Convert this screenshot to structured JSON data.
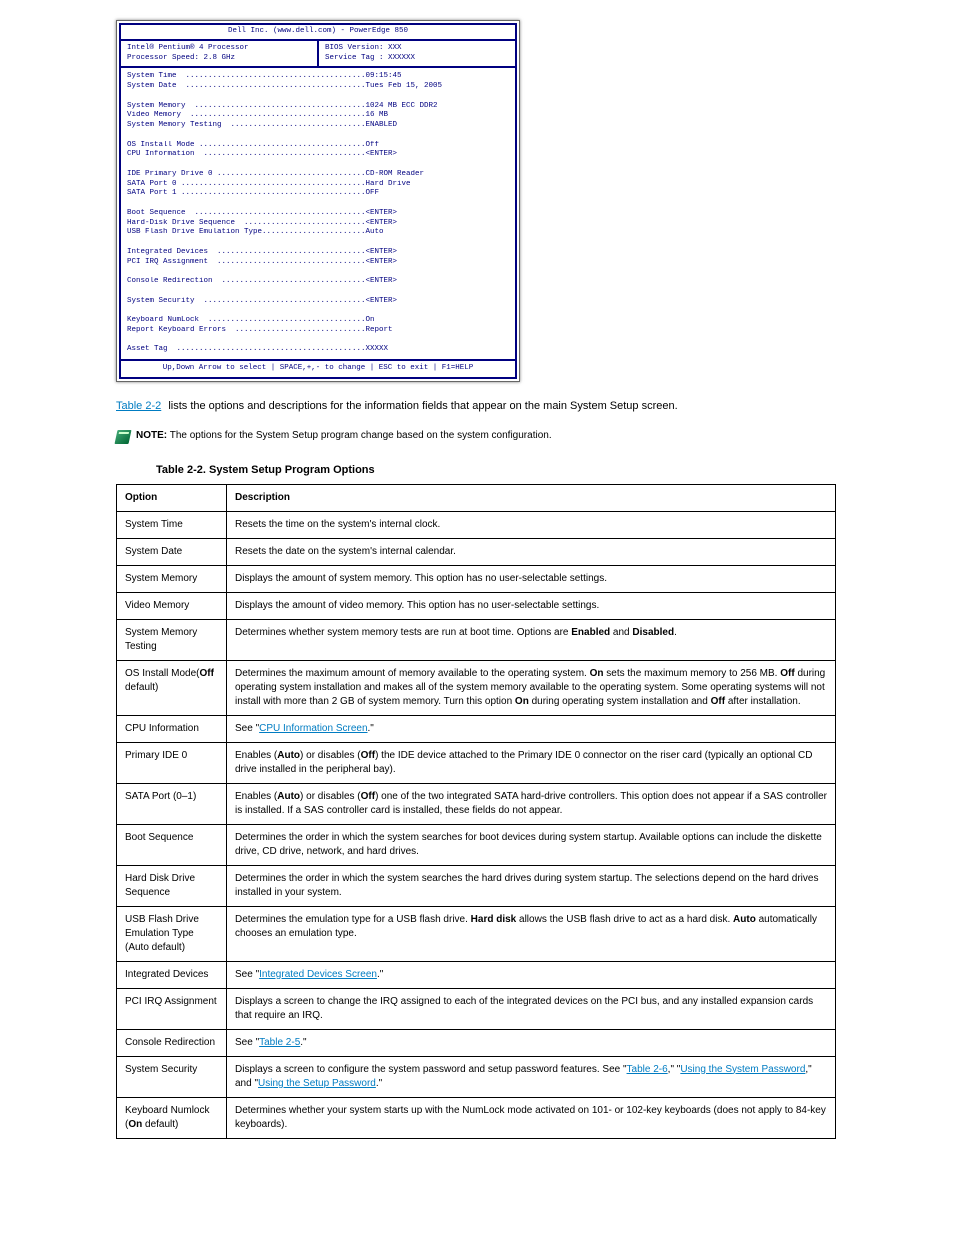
{
  "bios": {
    "header": "Dell Inc. (www.dell.com) - PowerEdge 850",
    "proc1": "Intel® Pentium® 4 Processor",
    "proc2": "Processor Speed: 2.8 GHz",
    "biosver": "BIOS Version: XXX",
    "svctag": "Service Tag : XXXXXX",
    "lines": [
      "System Time  ........................................09:15:45",
      "System Date  ........................................Tues Feb 15, 2005",
      "",
      "System Memory  ......................................1024 MB ECC DDR2",
      "Video Memory  .......................................16 MB",
      "System Memory Testing  ..............................ENABLED",
      "",
      "OS Install Mode .....................................Off",
      "CPU Information  ....................................<ENTER>",
      "",
      "IDE Primary Drive 0 .................................CD-ROM Reader",
      "SATA Port 0 .........................................Hard Drive",
      "SATA Port 1 .........................................OFF",
      "",
      "Boot Sequence  ......................................<ENTER>",
      "Hard-Disk Drive Sequence  ...........................<ENTER>",
      "USB Flash Drive Emulation Type.......................Auto",
      "",
      "Integrated Devices  .................................<ENTER>",
      "PCI IRQ Assignment  .................................<ENTER>",
      "",
      "Console Redirection  ................................<ENTER>",
      "",
      "System Security  ....................................<ENTER>",
      "",
      "Keyboard NumLock  ...................................On",
      "Report Keyboard Errors  .............................Report",
      "",
      "Asset Tag  ..........................................XXXXX"
    ],
    "footer": "Up,Down Arrow to select  |  SPACE,+,- to change  |  ESC to exit  |  F1=HELP"
  },
  "afterBios": {
    "linkLabel": "Table 2-2",
    "afterLink": " lists the options and descriptions for the information fields that appear on the main System Setup screen."
  },
  "note": {
    "bold": "NOTE:",
    "text": " The options for the System Setup program change based on the system configuration."
  },
  "tableCaption": "Table 2-2. System Setup Program Options",
  "tableCaptionNum": "",
  "headers": {
    "h1": "Option",
    "h2": "Description"
  },
  "rows": [
    {
      "opt": "System Time",
      "desc": "Resets the time on the system's internal clock."
    },
    {
      "opt": "System Date",
      "desc": "Resets the date on the system's internal calendar."
    },
    {
      "opt": "System Memory",
      "desc": "Displays the amount of system memory. This option has no user-selectable settings."
    },
    {
      "opt": "Video Memory",
      "desc": "Displays the amount of video memory. This option has no user-selectable settings."
    },
    {
      "opt": "System Memory Testing",
      "desc_pre": "Determines whether system memory tests are run at boot time. Options are ",
      "bold1": "Enabled",
      "mid1": " and ",
      "bold2": "Disabled",
      "desc_post": "."
    },
    {
      "opt_pre": "OS Install Mode",
      "opt_suf": "(",
      "opt_bold": "Off",
      "opt_suf2": " default)",
      "desc_pre": "Determines the maximum amount of memory available to the operating system. ",
      "bold1": "On",
      "mid1": " sets the maximum memory to 256 MB. ",
      "bold2": "Off",
      "desc_post": " makes all of the system memory available to the operating system. Some operating systems will not install with more than 2 GB of system memory. Turn this option ",
      "bold3": "On",
      "mid2": " during operating system installation and ",
      "bold4": "Off",
      "tail": " after installation."
    },
    {
      "opt": "CPU Information",
      "desc_pre": "See \"",
      "link": "CPU Information Screen",
      "desc_post": ".\""
    },
    {
      "opt_pre": "Primary IDE 0",
      "opt_suf": "",
      "desc_pre": "Enables (",
      "bold1": "Auto",
      "mid1": ") or disables (",
      "bold2": "Off",
      "desc_post": ") the IDE device attached to the Primary IDE 0 connector on the riser card (typically an optional CD drive installed in the peripheral bay)."
    },
    {
      "opt_html": "SATA Port (0–1)",
      "desc_pre": "Enables (",
      "bold1": "Auto",
      "mid1": ") or disables (",
      "bold2": "Off",
      "desc_post": ") one of the two integrated SATA hard-drive controllers. This option does not appear if a SAS controller is installed. If a SAS controller card is installed, these fields do not appear."
    },
    {
      "opt": "Boot Sequence",
      "desc": "Determines the order in which the system searches for boot devices during system startup. Available options can include the diskette drive, CD drive, network, and hard drives."
    },
    {
      "opt": "Hard Disk Drive Sequence",
      "desc": "Determines the order in which the system searches the hard drives during system startup. The selections depend on the hard drives installed in your system."
    },
    {
      "opt": "USB Flash Drive Emulation Type (Auto default)",
      "desc_pre": "Determines the emulation type for a USB flash drive. ",
      "bold1": "Hard disk",
      "mid1": " allows the USB flash drive to act as a hard disk. ",
      "bold2": "Auto",
      "desc_post": " automatically chooses an emulation type."
    },
    {
      "opt": "Integrated Devices",
      "desc_pre": "See \"",
      "link": "Integrated Devices Screen",
      "desc_post": ".\""
    },
    {
      "opt": "PCI IRQ Assignment",
      "desc": "Displays a screen to change the IRQ assigned to each of the integrated devices on the PCI bus, and any installed expansion cards that require an IRQ."
    },
    {
      "opt": "Console Redirection",
      "desc_pre": "See \"",
      "link": "Table 2-5",
      "desc_post": ".\""
    },
    {
      "opt": "System Security",
      "desc_pre": "Displays a screen to configure the system password and setup password features. See \"",
      "link": "Table 2-6",
      "mid": ",\" \"",
      "link2": "Using the System Password",
      "mid2": ",\" and \"",
      "link3": "Using the Setup Password",
      "desc_post": ".\""
    },
    {
      "opt_pre": "Keyboard Numlock (",
      "opt_bold": "On",
      "opt_suf2": " default)",
      "desc": "Determines whether your system starts up with the NumLock mode activated on 101- or 102-key keyboards (does not apply to 84-key keyboards)."
    }
  ]
}
